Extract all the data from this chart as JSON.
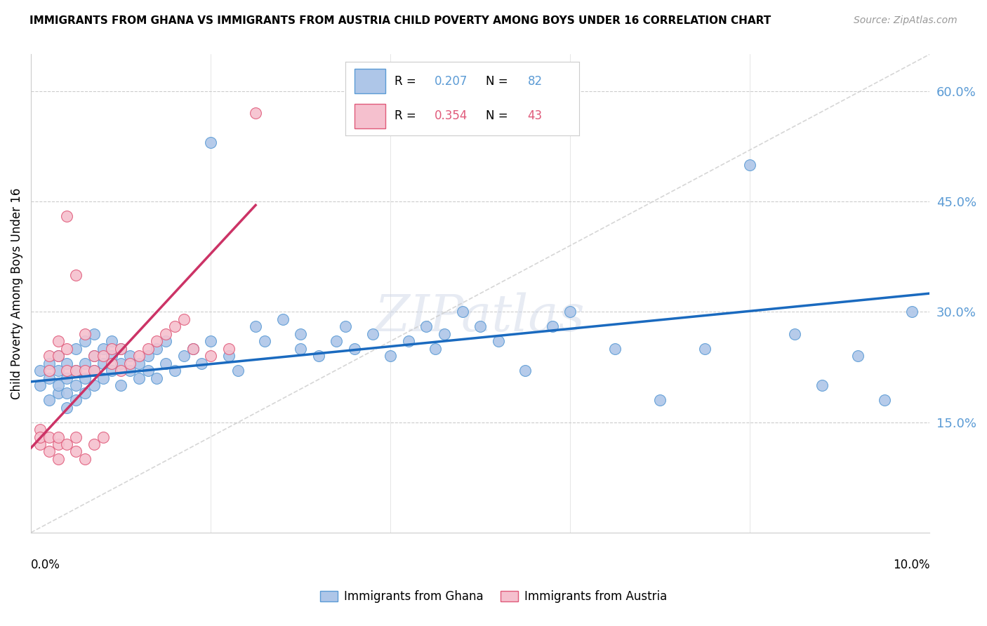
{
  "title": "IMMIGRANTS FROM GHANA VS IMMIGRANTS FROM AUSTRIA CHILD POVERTY AMONG BOYS UNDER 16 CORRELATION CHART",
  "source": "Source: ZipAtlas.com",
  "ylabel": "Child Poverty Among Boys Under 16",
  "xlim": [
    0.0,
    0.1
  ],
  "ylim": [
    0.0,
    0.65
  ],
  "ghana_color_fill": "#aec6e8",
  "ghana_color_edge": "#5b9bd5",
  "austria_color_fill": "#f5c0ce",
  "austria_color_edge": "#e05a7a",
  "ghana_R": 0.207,
  "ghana_N": 82,
  "austria_R": 0.354,
  "austria_N": 43,
  "trendline_ghana": "#1a6abf",
  "trendline_austria": "#cc3366",
  "diagonal_color": "#cccccc",
  "ytick_vals": [
    0.15,
    0.3,
    0.45,
    0.6
  ],
  "ytick_labels": [
    "15.0%",
    "30.0%",
    "45.0%",
    "60.0%"
  ],
  "ghana_x": [
    0.001,
    0.001,
    0.002,
    0.002,
    0.002,
    0.003,
    0.003,
    0.003,
    0.003,
    0.004,
    0.004,
    0.004,
    0.004,
    0.005,
    0.005,
    0.005,
    0.005,
    0.006,
    0.006,
    0.006,
    0.006,
    0.007,
    0.007,
    0.007,
    0.007,
    0.008,
    0.008,
    0.008,
    0.009,
    0.009,
    0.009,
    0.01,
    0.01,
    0.01,
    0.011,
    0.011,
    0.012,
    0.012,
    0.013,
    0.013,
    0.014,
    0.014,
    0.015,
    0.015,
    0.016,
    0.017,
    0.018,
    0.019,
    0.02,
    0.02,
    0.022,
    0.023,
    0.025,
    0.026,
    0.028,
    0.03,
    0.03,
    0.032,
    0.034,
    0.035,
    0.036,
    0.038,
    0.04,
    0.042,
    0.044,
    0.045,
    0.046,
    0.048,
    0.05,
    0.052,
    0.055,
    0.058,
    0.06,
    0.065,
    0.07,
    0.075,
    0.08,
    0.085,
    0.088,
    0.092,
    0.095,
    0.098
  ],
  "ghana_y": [
    0.2,
    0.22,
    0.18,
    0.21,
    0.23,
    0.19,
    0.2,
    0.22,
    0.24,
    0.17,
    0.19,
    0.21,
    0.23,
    0.18,
    0.2,
    0.22,
    0.25,
    0.19,
    0.21,
    0.23,
    0.26,
    0.2,
    0.22,
    0.24,
    0.27,
    0.21,
    0.23,
    0.25,
    0.22,
    0.24,
    0.26,
    0.2,
    0.23,
    0.25,
    0.22,
    0.24,
    0.21,
    0.23,
    0.22,
    0.24,
    0.21,
    0.25,
    0.23,
    0.26,
    0.22,
    0.24,
    0.25,
    0.23,
    0.53,
    0.26,
    0.24,
    0.22,
    0.28,
    0.26,
    0.29,
    0.25,
    0.27,
    0.24,
    0.26,
    0.28,
    0.25,
    0.27,
    0.24,
    0.26,
    0.28,
    0.25,
    0.27,
    0.3,
    0.28,
    0.26,
    0.22,
    0.28,
    0.3,
    0.25,
    0.18,
    0.25,
    0.5,
    0.27,
    0.2,
    0.24,
    0.18,
    0.3
  ],
  "austria_x": [
    0.001,
    0.001,
    0.001,
    0.002,
    0.002,
    0.002,
    0.002,
    0.003,
    0.003,
    0.003,
    0.003,
    0.003,
    0.004,
    0.004,
    0.004,
    0.004,
    0.005,
    0.005,
    0.005,
    0.005,
    0.006,
    0.006,
    0.006,
    0.007,
    0.007,
    0.007,
    0.008,
    0.008,
    0.009,
    0.009,
    0.01,
    0.01,
    0.011,
    0.012,
    0.013,
    0.014,
    0.015,
    0.016,
    0.017,
    0.018,
    0.02,
    0.022,
    0.025
  ],
  "austria_y": [
    0.12,
    0.14,
    0.13,
    0.11,
    0.13,
    0.22,
    0.24,
    0.1,
    0.12,
    0.13,
    0.24,
    0.26,
    0.12,
    0.22,
    0.25,
    0.43,
    0.11,
    0.13,
    0.22,
    0.35,
    0.1,
    0.22,
    0.27,
    0.12,
    0.22,
    0.24,
    0.13,
    0.24,
    0.23,
    0.25,
    0.22,
    0.25,
    0.23,
    0.24,
    0.25,
    0.26,
    0.27,
    0.28,
    0.29,
    0.25,
    0.24,
    0.25,
    0.57
  ],
  "ghana_trend_x0": 0.0,
  "ghana_trend_x1": 0.1,
  "ghana_trend_y0": 0.205,
  "ghana_trend_y1": 0.325,
  "austria_trend_x0": 0.0,
  "austria_trend_x1": 0.025,
  "austria_trend_y0": 0.115,
  "austria_trend_y1": 0.445
}
